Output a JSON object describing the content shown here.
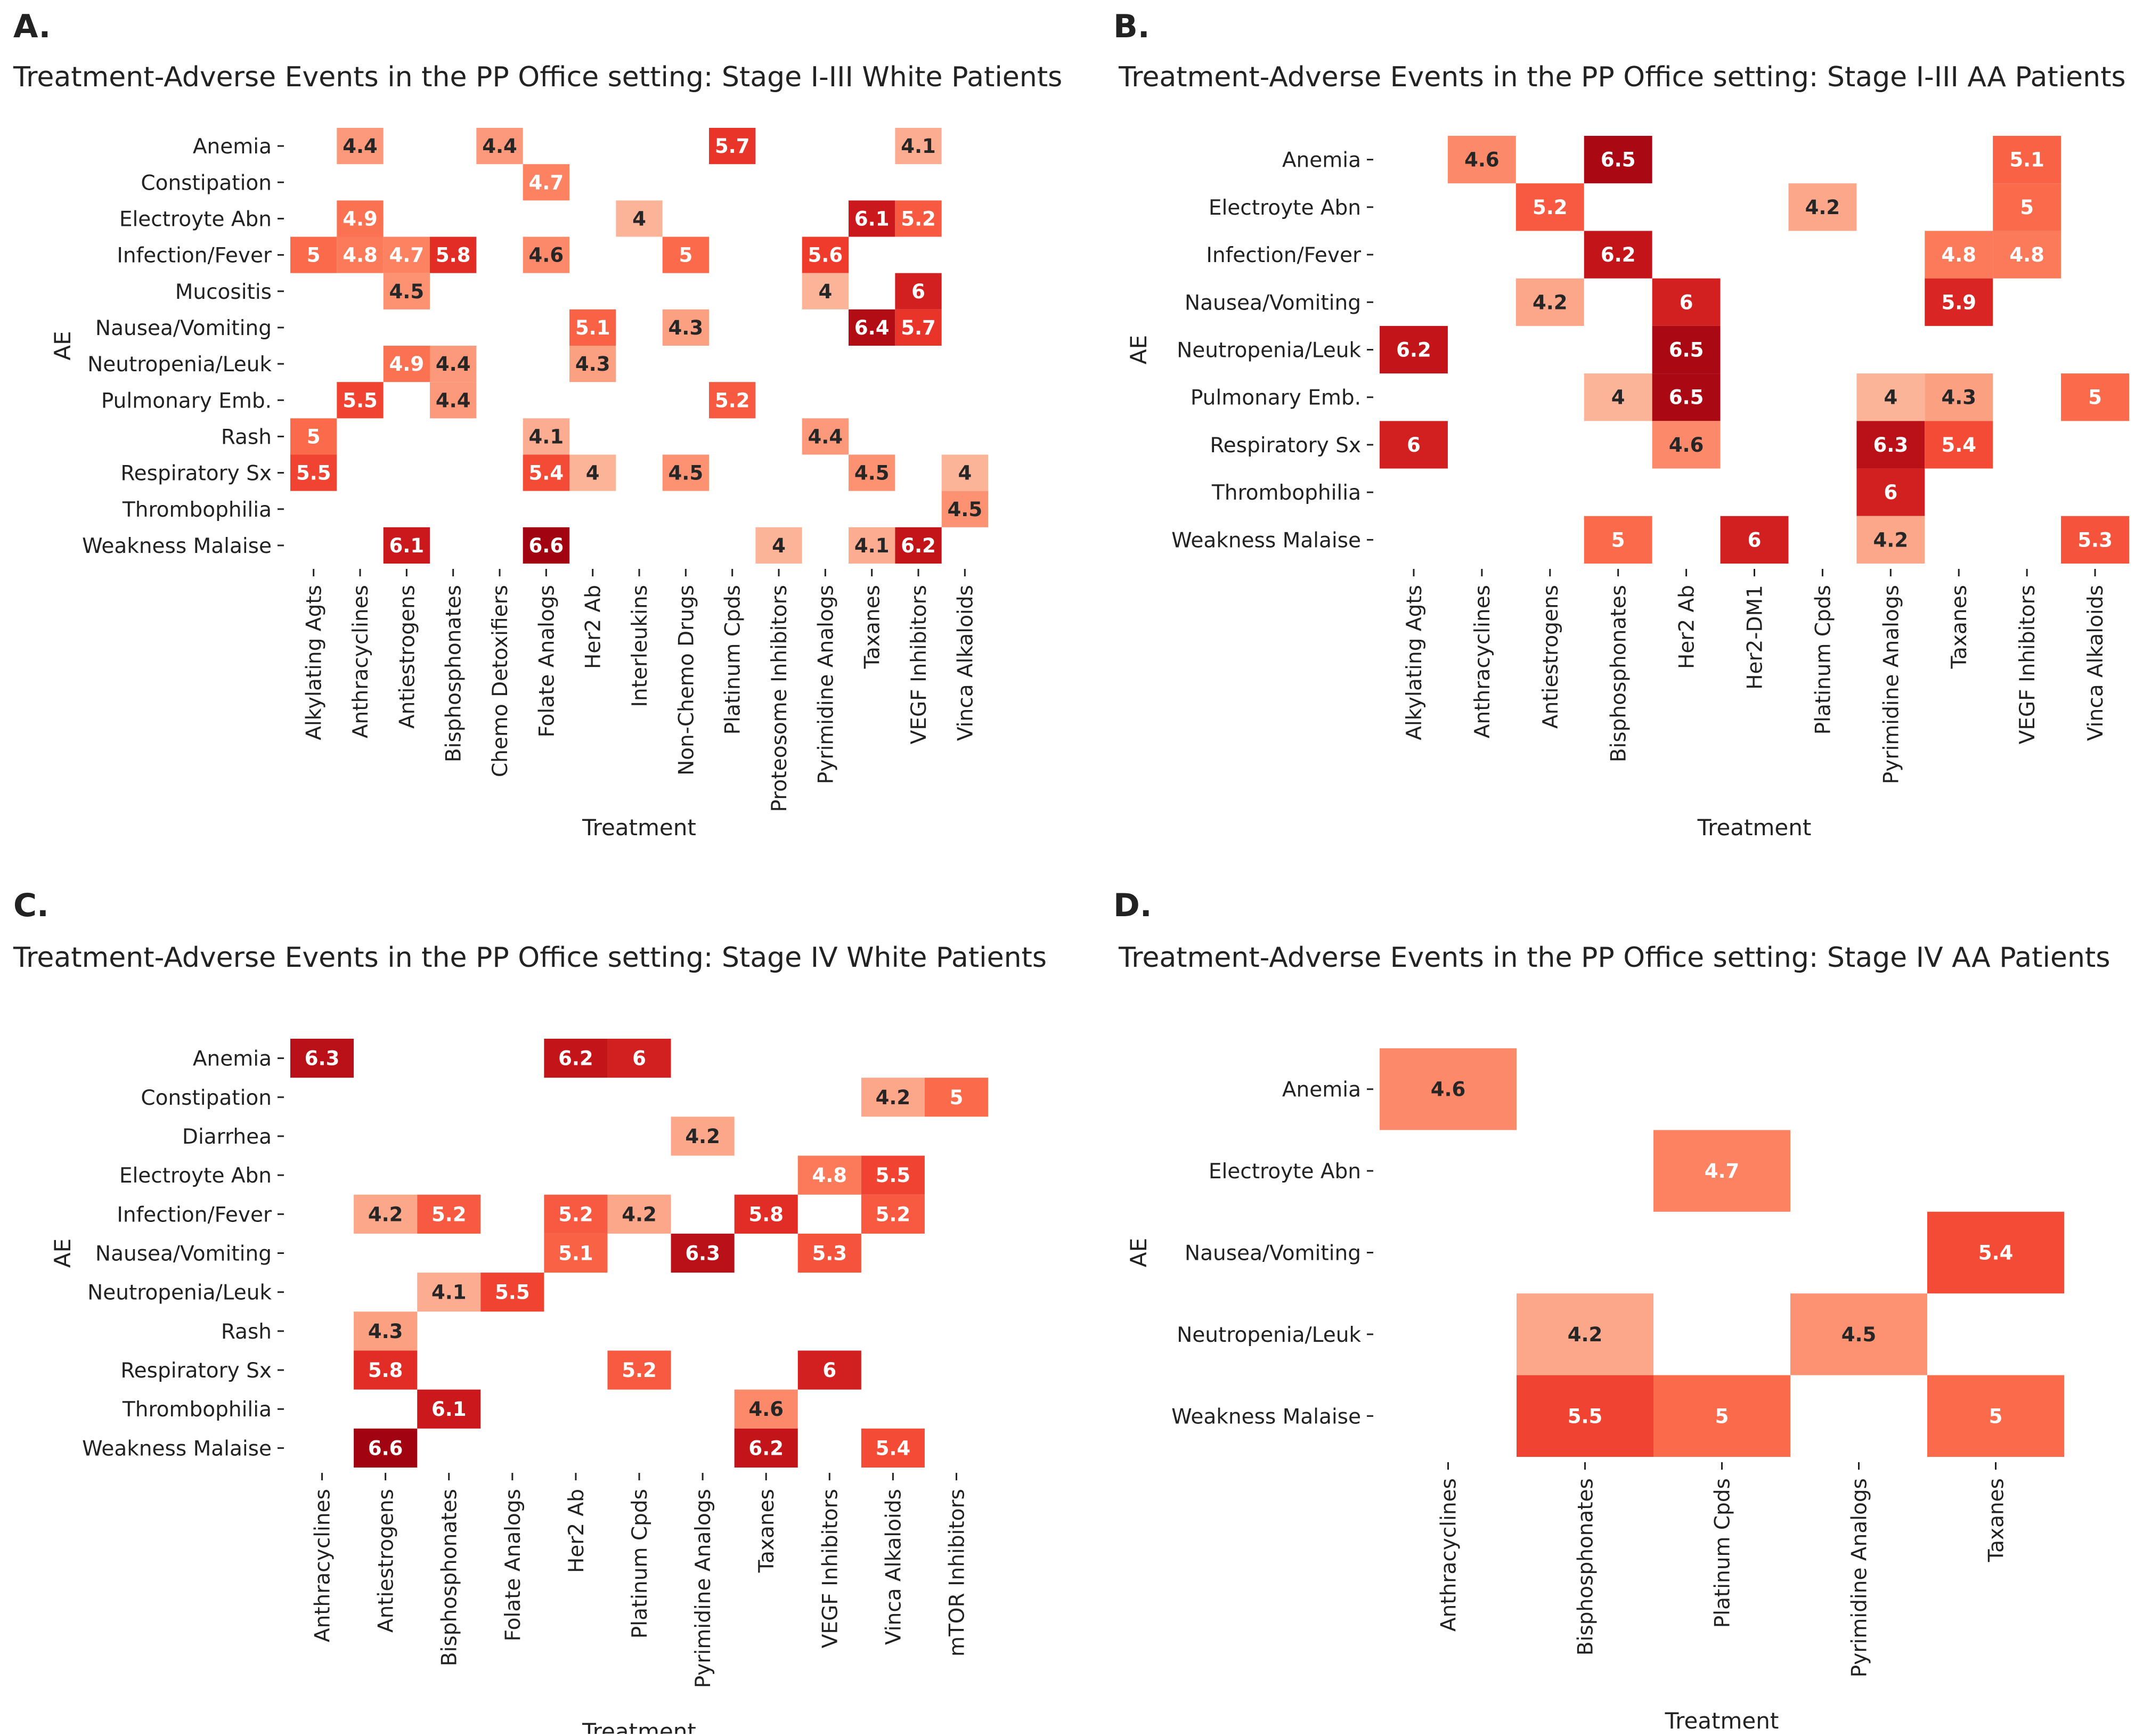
{
  "figure": {
    "panels": [
      "A.",
      "B.",
      "C.",
      "D."
    ]
  },
  "chart_data": [
    {
      "type": "heatmap",
      "panel": "A.",
      "title": "Treatment-Adverse Events in the PP Office setting: Stage I-III White Patients",
      "xlabel": "Treatment",
      "ylabel": "AE",
      "rows": [
        "Anemia",
        "Constipation",
        "Electroyte Abn",
        "Infection/Fever",
        "Mucositis",
        "Nausea/Vomiting",
        "Neutropenia/Leuk",
        "Pulmonary Emb.",
        "Rash",
        "Respiratory Sx",
        "Thrombophilia",
        "Weakness Malaise"
      ],
      "columns": [
        "Alkylating Agts",
        "Anthracyclines",
        "Antiestrogens",
        "Bisphosphonates",
        "Chemo Detoxifiers",
        "Folate Analogs",
        "Her2 Ab",
        "Interleukins",
        "Non-Chemo Drugs",
        "Platinum Cpds",
        "Proteosome Inhibitors",
        "Pyrimidine Analogs",
        "Taxanes",
        "VEGF Inhibitors",
        "Vinca Alkaloids"
      ],
      "cells": [
        {
          "row": "Anemia",
          "col": "Anthracyclines",
          "value": 4.4
        },
        {
          "row": "Anemia",
          "col": "Chemo Detoxifiers",
          "value": 4.4
        },
        {
          "row": "Anemia",
          "col": "Platinum Cpds",
          "value": 5.7
        },
        {
          "row": "Anemia",
          "col": "VEGF Inhibitors",
          "value": 4.1
        },
        {
          "row": "Constipation",
          "col": "Folate Analogs",
          "value": 4.7
        },
        {
          "row": "Electroyte Abn",
          "col": "Anthracyclines",
          "value": 4.9
        },
        {
          "row": "Electroyte Abn",
          "col": "Interleukins",
          "value": 4
        },
        {
          "row": "Electroyte Abn",
          "col": "Taxanes",
          "value": 6.1
        },
        {
          "row": "Electroyte Abn",
          "col": "VEGF Inhibitors",
          "value": 5.2
        },
        {
          "row": "Infection/Fever",
          "col": "Alkylating Agts",
          "value": 5
        },
        {
          "row": "Infection/Fever",
          "col": "Anthracyclines",
          "value": 4.8
        },
        {
          "row": "Infection/Fever",
          "col": "Antiestrogens",
          "value": 4.7
        },
        {
          "row": "Infection/Fever",
          "col": "Bisphosphonates",
          "value": 5.8
        },
        {
          "row": "Infection/Fever",
          "col": "Folate Analogs",
          "value": 4.6
        },
        {
          "row": "Infection/Fever",
          "col": "Non-Chemo Drugs",
          "value": 5
        },
        {
          "row": "Infection/Fever",
          "col": "Pyrimidine Analogs",
          "value": 5.6
        },
        {
          "row": "Mucositis",
          "col": "Antiestrogens",
          "value": 4.5
        },
        {
          "row": "Mucositis",
          "col": "Pyrimidine Analogs",
          "value": 4
        },
        {
          "row": "Mucositis",
          "col": "VEGF Inhibitors",
          "value": 6
        },
        {
          "row": "Nausea/Vomiting",
          "col": "Her2 Ab",
          "value": 5.1
        },
        {
          "row": "Nausea/Vomiting",
          "col": "Non-Chemo Drugs",
          "value": 4.3
        },
        {
          "row": "Nausea/Vomiting",
          "col": "Taxanes",
          "value": 6.4
        },
        {
          "row": "Nausea/Vomiting",
          "col": "VEGF Inhibitors",
          "value": 5.7
        },
        {
          "row": "Neutropenia/Leuk",
          "col": "Antiestrogens",
          "value": 4.9
        },
        {
          "row": "Neutropenia/Leuk",
          "col": "Bisphosphonates",
          "value": 4.4
        },
        {
          "row": "Neutropenia/Leuk",
          "col": "Her2 Ab",
          "value": 4.3
        },
        {
          "row": "Pulmonary Emb.",
          "col": "Anthracyclines",
          "value": 5.5
        },
        {
          "row": "Pulmonary Emb.",
          "col": "Bisphosphonates",
          "value": 4.4
        },
        {
          "row": "Pulmonary Emb.",
          "col": "Platinum Cpds",
          "value": 5.2
        },
        {
          "row": "Rash",
          "col": "Alkylating Agts",
          "value": 5
        },
        {
          "row": "Rash",
          "col": "Folate Analogs",
          "value": 4.1
        },
        {
          "row": "Rash",
          "col": "Pyrimidine Analogs",
          "value": 4.4
        },
        {
          "row": "Respiratory Sx",
          "col": "Alkylating Agts",
          "value": 5.5
        },
        {
          "row": "Respiratory Sx",
          "col": "Folate Analogs",
          "value": 5.4
        },
        {
          "row": "Respiratory Sx",
          "col": "Her2 Ab",
          "value": 4
        },
        {
          "row": "Respiratory Sx",
          "col": "Non-Chemo Drugs",
          "value": 4.5
        },
        {
          "row": "Respiratory Sx",
          "col": "Taxanes",
          "value": 4.5
        },
        {
          "row": "Respiratory Sx",
          "col": "Vinca Alkaloids",
          "value": 4
        },
        {
          "row": "Thrombophilia",
          "col": "Vinca Alkaloids",
          "value": 4.5
        },
        {
          "row": "Weakness Malaise",
          "col": "Antiestrogens",
          "value": 6.1
        },
        {
          "row": "Weakness Malaise",
          "col": "Folate Analogs",
          "value": 6.6
        },
        {
          "row": "Weakness Malaise",
          "col": "Proteosome Inhibitors",
          "value": 4
        },
        {
          "row": "Weakness Malaise",
          "col": "Taxanes",
          "value": 4.1
        },
        {
          "row": "Weakness Malaise",
          "col": "VEGF Inhibitors",
          "value": 6.2
        }
      ]
    },
    {
      "type": "heatmap",
      "panel": "B.",
      "title": "Treatment-Adverse Events in the PP Office setting: Stage I-III AA Patients",
      "xlabel": "Treatment",
      "ylabel": "AE",
      "rows": [
        "Anemia",
        "Electroyte Abn",
        "Infection/Fever",
        "Nausea/Vomiting",
        "Neutropenia/Leuk",
        "Pulmonary Emb.",
        "Respiratory Sx",
        "Thrombophilia",
        "Weakness Malaise"
      ],
      "columns": [
        "Alkylating Agts",
        "Anthracyclines",
        "Antiestrogens",
        "Bisphosphonates",
        "Her2 Ab",
        "Her2-DM1",
        "Platinum Cpds",
        "Pyrimidine Analogs",
        "Taxanes",
        "VEGF Inhibitors",
        "Vinca Alkaloids"
      ],
      "cells": [
        {
          "row": "Anemia",
          "col": "Anthracyclines",
          "value": 4.6
        },
        {
          "row": "Anemia",
          "col": "Bisphosphonates",
          "value": 6.5
        },
        {
          "row": "Anemia",
          "col": "VEGF Inhibitors",
          "value": 5.1
        },
        {
          "row": "Electroyte Abn",
          "col": "Antiestrogens",
          "value": 5.2
        },
        {
          "row": "Electroyte Abn",
          "col": "Platinum Cpds",
          "value": 4.2
        },
        {
          "row": "Electroyte Abn",
          "col": "VEGF Inhibitors",
          "value": 5
        },
        {
          "row": "Infection/Fever",
          "col": "Bisphosphonates",
          "value": 6.2
        },
        {
          "row": "Infection/Fever",
          "col": "Taxanes",
          "value": 4.8
        },
        {
          "row": "Infection/Fever",
          "col": "VEGF Inhibitors",
          "value": 4.8
        },
        {
          "row": "Nausea/Vomiting",
          "col": "Antiestrogens",
          "value": 4.2
        },
        {
          "row": "Nausea/Vomiting",
          "col": "Her2 Ab",
          "value": 6
        },
        {
          "row": "Nausea/Vomiting",
          "col": "Taxanes",
          "value": 5.9
        },
        {
          "row": "Neutropenia/Leuk",
          "col": "Alkylating Agts",
          "value": 6.2
        },
        {
          "row": "Neutropenia/Leuk",
          "col": "Her2 Ab",
          "value": 6.5
        },
        {
          "row": "Pulmonary Emb.",
          "col": "Bisphosphonates",
          "value": 4
        },
        {
          "row": "Pulmonary Emb.",
          "col": "Her2 Ab",
          "value": 6.5
        },
        {
          "row": "Pulmonary Emb.",
          "col": "Pyrimidine Analogs",
          "value": 4
        },
        {
          "row": "Pulmonary Emb.",
          "col": "Taxanes",
          "value": 4.3
        },
        {
          "row": "Pulmonary Emb.",
          "col": "Vinca Alkaloids",
          "value": 5
        },
        {
          "row": "Respiratory Sx",
          "col": "Alkylating Agts",
          "value": 6
        },
        {
          "row": "Respiratory Sx",
          "col": "Her2 Ab",
          "value": 4.6
        },
        {
          "row": "Respiratory Sx",
          "col": "Pyrimidine Analogs",
          "value": 6.3
        },
        {
          "row": "Respiratory Sx",
          "col": "Taxanes",
          "value": 5.4
        },
        {
          "row": "Thrombophilia",
          "col": "Pyrimidine Analogs",
          "value": 6
        },
        {
          "row": "Weakness Malaise",
          "col": "Bisphosphonates",
          "value": 5
        },
        {
          "row": "Weakness Malaise",
          "col": "Her2-DM1",
          "value": 6
        },
        {
          "row": "Weakness Malaise",
          "col": "Pyrimidine Analogs",
          "value": 4.2
        },
        {
          "row": "Weakness Malaise",
          "col": "Vinca Alkaloids",
          "value": 5.3
        }
      ]
    },
    {
      "type": "heatmap",
      "panel": "C.",
      "title": "Treatment-Adverse Events in the PP Office setting: Stage IV White Patients",
      "xlabel": "Treatment",
      "ylabel": "AE",
      "rows": [
        "Anemia",
        "Constipation",
        "Diarrhea",
        "Electroyte Abn",
        "Infection/Fever",
        "Nausea/Vomiting",
        "Neutropenia/Leuk",
        "Rash",
        "Respiratory Sx",
        "Thrombophilia",
        "Weakness Malaise"
      ],
      "columns": [
        "Anthracyclines",
        "Antiestrogens",
        "Bisphosphonates",
        "Folate Analogs",
        "Her2 Ab",
        "Platinum Cpds",
        "Pyrimidine Analogs",
        "Taxanes",
        "VEGF Inhibitors",
        "Vinca Alkaloids",
        "mTOR Inhibitors"
      ],
      "cells": [
        {
          "row": "Anemia",
          "col": "Anthracyclines",
          "value": 6.3
        },
        {
          "row": "Anemia",
          "col": "Her2 Ab",
          "value": 6.2
        },
        {
          "row": "Anemia",
          "col": "Platinum Cpds",
          "value": 6
        },
        {
          "row": "Constipation",
          "col": "Vinca Alkaloids",
          "value": 4.2
        },
        {
          "row": "Constipation",
          "col": "mTOR Inhibitors",
          "value": 5
        },
        {
          "row": "Diarrhea",
          "col": "Pyrimidine Analogs",
          "value": 4.2
        },
        {
          "row": "Electroyte Abn",
          "col": "VEGF Inhibitors",
          "value": 4.8
        },
        {
          "row": "Electroyte Abn",
          "col": "Vinca Alkaloids",
          "value": 5.5
        },
        {
          "row": "Infection/Fever",
          "col": "Antiestrogens",
          "value": 4.2
        },
        {
          "row": "Infection/Fever",
          "col": "Bisphosphonates",
          "value": 5.2
        },
        {
          "row": "Infection/Fever",
          "col": "Her2 Ab",
          "value": 5.2
        },
        {
          "row": "Infection/Fever",
          "col": "Platinum Cpds",
          "value": 4.2
        },
        {
          "row": "Infection/Fever",
          "col": "Taxanes",
          "value": 5.8
        },
        {
          "row": "Infection/Fever",
          "col": "Vinca Alkaloids",
          "value": 5.2
        },
        {
          "row": "Nausea/Vomiting",
          "col": "Her2 Ab",
          "value": 5.1
        },
        {
          "row": "Nausea/Vomiting",
          "col": "Pyrimidine Analogs",
          "value": 6.3
        },
        {
          "row": "Nausea/Vomiting",
          "col": "VEGF Inhibitors",
          "value": 5.3
        },
        {
          "row": "Neutropenia/Leuk",
          "col": "Bisphosphonates",
          "value": 4.1
        },
        {
          "row": "Neutropenia/Leuk",
          "col": "Folate Analogs",
          "value": 5.5
        },
        {
          "row": "Rash",
          "col": "Antiestrogens",
          "value": 4.3
        },
        {
          "row": "Respiratory Sx",
          "col": "Antiestrogens",
          "value": 5.8
        },
        {
          "row": "Respiratory Sx",
          "col": "Platinum Cpds",
          "value": 5.2
        },
        {
          "row": "Respiratory Sx",
          "col": "VEGF Inhibitors",
          "value": 6
        },
        {
          "row": "Thrombophilia",
          "col": "Bisphosphonates",
          "value": 6.1
        },
        {
          "row": "Thrombophilia",
          "col": "Taxanes",
          "value": 4.6
        },
        {
          "row": "Weakness Malaise",
          "col": "Antiestrogens",
          "value": 6.6
        },
        {
          "row": "Weakness Malaise",
          "col": "Taxanes",
          "value": 6.2
        },
        {
          "row": "Weakness Malaise",
          "col": "Vinca Alkaloids",
          "value": 5.4
        }
      ]
    },
    {
      "type": "heatmap",
      "panel": "D.",
      "title": "Treatment-Adverse Events in the PP Office setting: Stage IV AA Patients",
      "xlabel": "Treatment",
      "ylabel": "AE",
      "rows": [
        "Anemia",
        "Electroyte Abn",
        "Nausea/Vomiting",
        "Neutropenia/Leuk",
        "Weakness Malaise"
      ],
      "columns": [
        "Anthracyclines",
        "Bisphosphonates",
        "Platinum Cpds",
        "Pyrimidine Analogs",
        "Taxanes"
      ],
      "cells": [
        {
          "row": "Anemia",
          "col": "Anthracyclines",
          "value": 4.6
        },
        {
          "row": "Electroyte Abn",
          "col": "Platinum Cpds",
          "value": 4.7
        },
        {
          "row": "Nausea/Vomiting",
          "col": "Taxanes",
          "value": 5.4
        },
        {
          "row": "Neutropenia/Leuk",
          "col": "Bisphosphonates",
          "value": 4.2
        },
        {
          "row": "Neutropenia/Leuk",
          "col": "Pyrimidine Analogs",
          "value": 4.5
        },
        {
          "row": "Weakness Malaise",
          "col": "Bisphosphonates",
          "value": 5.5
        },
        {
          "row": "Weakness Malaise",
          "col": "Platinum Cpds",
          "value": 5
        },
        {
          "row": "Weakness Malaise",
          "col": "Taxanes",
          "value": 5
        }
      ]
    }
  ]
}
